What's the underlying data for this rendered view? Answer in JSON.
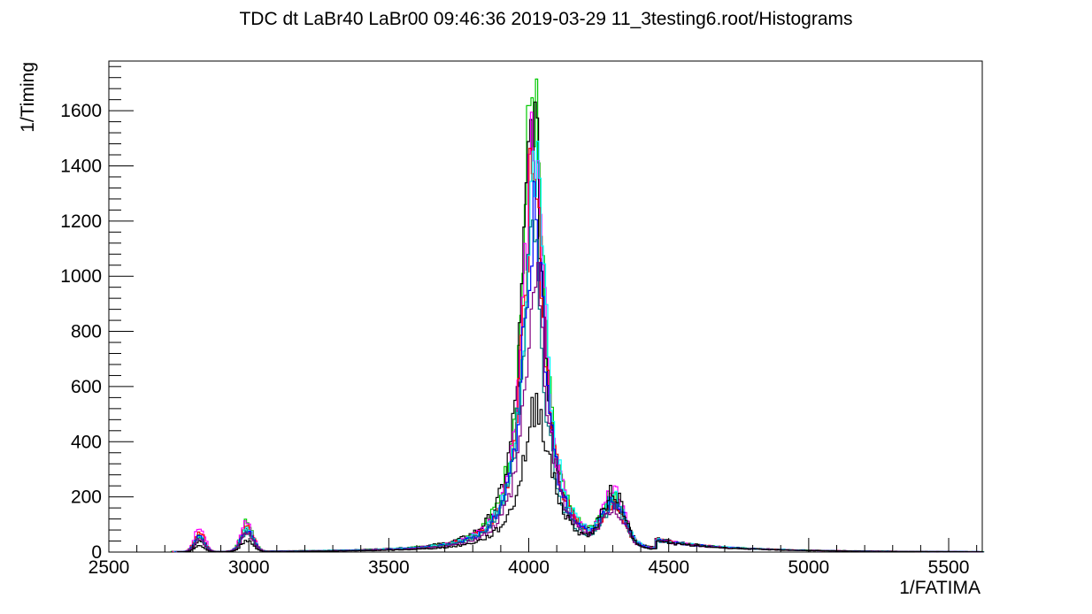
{
  "title": "TDC dt LaBr40 LaBr00  09:46:36  2019-03-29  11_3testing6.root/Histograms",
  "chart_data": {
    "type": "line",
    "style": "step histogram overlay",
    "title": "TDC dt LaBr40 LaBr00  09:46:36  2019-03-29  11_3testing6.root/Histograms",
    "xlabel": "1/FATIMA",
    "ylabel": "1/Timing",
    "xlim": [
      2500,
      5620
    ],
    "ylim": [
      0,
      1780
    ],
    "x_ticks": [
      2500,
      3000,
      3500,
      4000,
      4500,
      5000,
      5500
    ],
    "y_ticks": [
      0,
      200,
      400,
      600,
      800,
      1000,
      1200,
      1400,
      1600
    ],
    "x_tick_labels": [
      "2500",
      "3000",
      "3500",
      "4000",
      "4500",
      "5000",
      "5500"
    ],
    "y_tick_labels": [
      "0",
      "200",
      "400",
      "600",
      "800",
      "1000",
      "1200",
      "1400",
      "1600"
    ],
    "grid": false,
    "legend": "none",
    "series": [
      {
        "color": "#00c800",
        "peak": 1690,
        "bump1": 60,
        "bump2": 105,
        "bump3": 170,
        "center": 4010,
        "width": 55
      },
      {
        "color": "#000000",
        "peak": 1560,
        "bump1": 40,
        "bump2": 75,
        "bump3": 150,
        "center": 4010,
        "width": 58
      },
      {
        "color": "#ff00ff",
        "peak": 1550,
        "bump1": 95,
        "bump2": 105,
        "bump3": 180,
        "center": 4015,
        "width": 55
      },
      {
        "color": "#ff0000",
        "peak": 1400,
        "bump1": 70,
        "bump2": 90,
        "bump3": 130,
        "center": 4015,
        "width": 57
      },
      {
        "color": "#00ffff",
        "peak": 1350,
        "bump1": 55,
        "bump2": 80,
        "bump3": 160,
        "center": 4020,
        "width": 60
      },
      {
        "color": "#0000ff",
        "peak": 1250,
        "bump1": 55,
        "bump2": 75,
        "bump3": 150,
        "center": 4015,
        "width": 58
      },
      {
        "color": "#008080",
        "peak": 1100,
        "bump1": 50,
        "bump2": 70,
        "bump3": 140,
        "center": 4010,
        "width": 60
      },
      {
        "color": "#800080",
        "peak": 950,
        "bump1": 45,
        "bump2": 65,
        "bump3": 130,
        "center": 4020,
        "width": 62
      },
      {
        "color": "#000000",
        "peak": 535,
        "bump1": 20,
        "bump2": 40,
        "bump3": 195,
        "center": 4025,
        "width": 75
      }
    ]
  }
}
